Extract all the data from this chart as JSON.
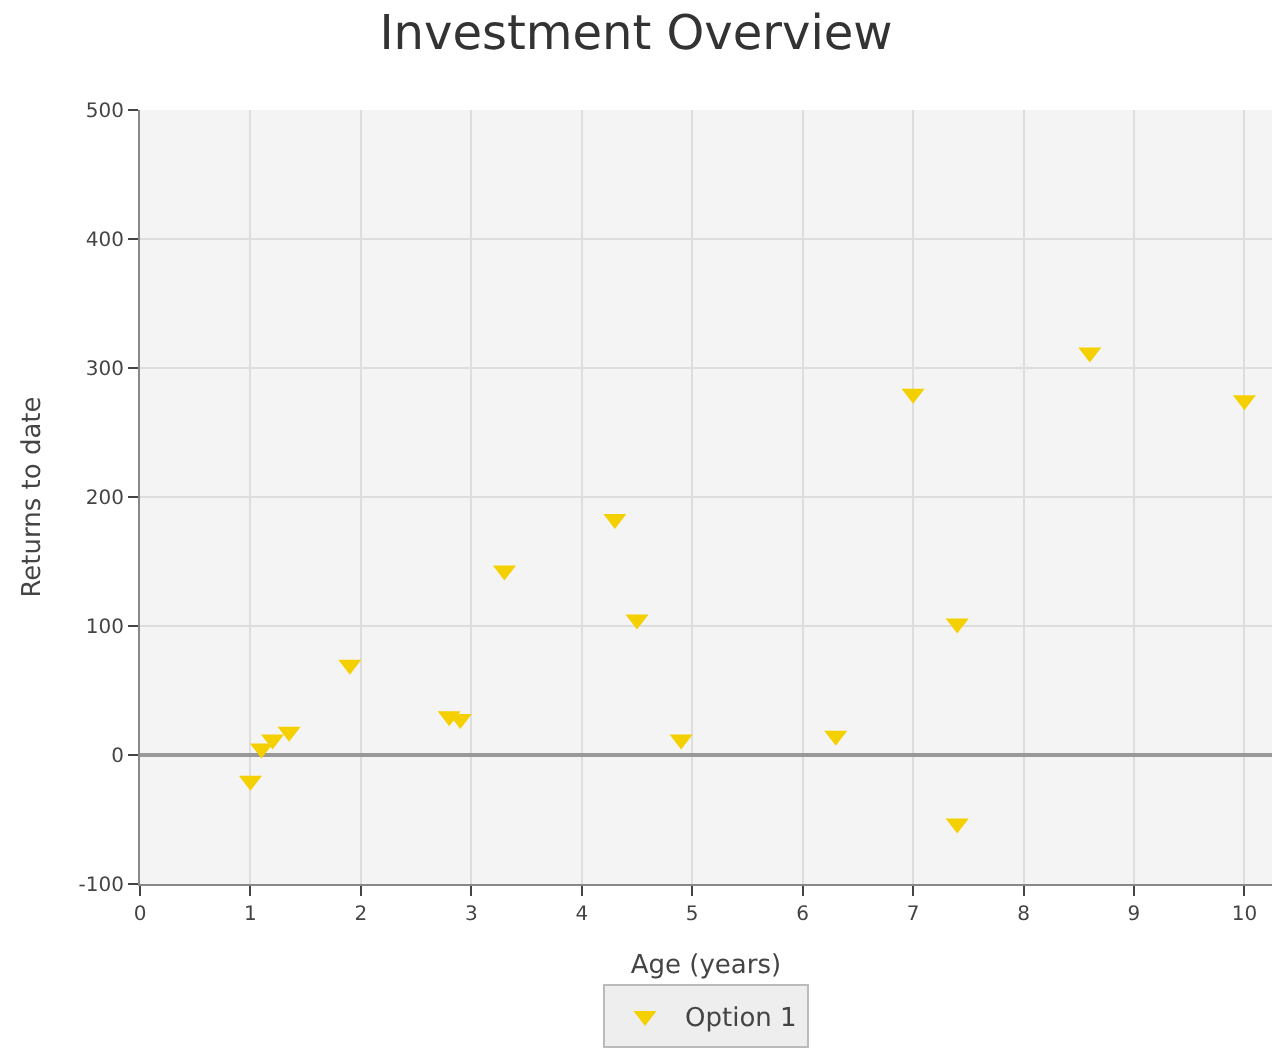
{
  "chart_data": {
    "type": "scatter",
    "title": "Investment Overview",
    "xlabel": "Age (years)",
    "ylabel": "Returns to date",
    "xlim": [
      0,
      10.25
    ],
    "xticks": [
      0,
      1,
      2,
      3,
      4,
      5,
      6,
      7,
      8,
      9,
      10
    ],
    "ylim": [
      -100,
      500
    ],
    "yticks": [
      -100,
      0,
      100,
      200,
      300,
      400,
      500
    ],
    "grid": true,
    "legend": "bottom",
    "marker": "triangle",
    "series": [
      {
        "name": "Option 1",
        "color": "#f5d000",
        "x": [
          1.0,
          1.1,
          1.2,
          1.35,
          1.9,
          2.8,
          2.9,
          3.3,
          4.3,
          4.5,
          4.9,
          6.3,
          7.0,
          7.4,
          7.4,
          8.6,
          10.0
        ],
        "values": [
          -20,
          5,
          12,
          18,
          70,
          30,
          28,
          143,
          183,
          105,
          12,
          15,
          280,
          102,
          -53,
          312,
          275
        ]
      }
    ]
  }
}
